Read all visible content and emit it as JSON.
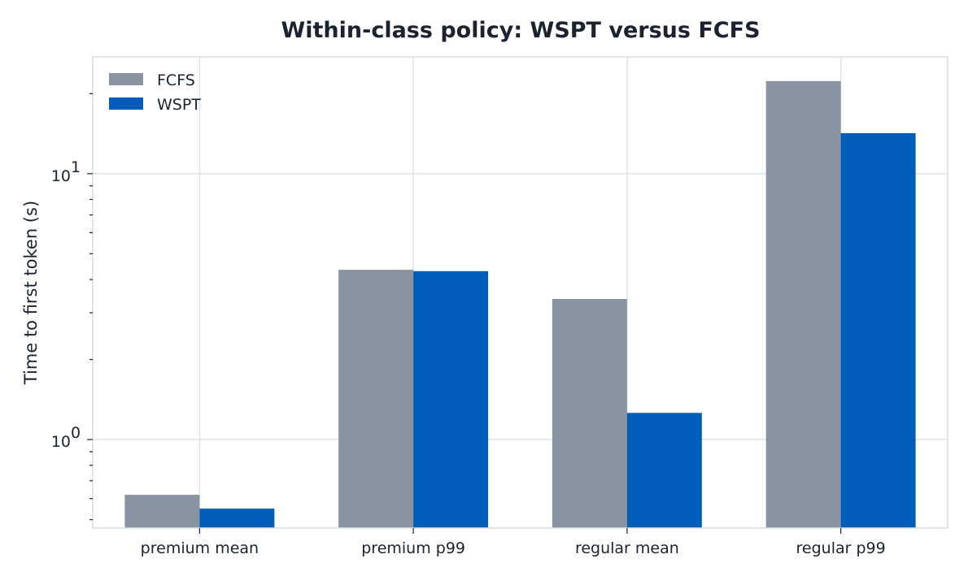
{
  "chart_data": {
    "type": "bar",
    "title": "Within-class policy: WSPT versus FCFS",
    "ylabel": "Time to first token (s)",
    "xlabel": "",
    "yscale": "log",
    "ylim": [
      0.465,
      27.5
    ],
    "grid": true,
    "legend_position": "top-left",
    "categories": [
      "premium mean",
      "premium p99",
      "regular mean",
      "regular p99"
    ],
    "y_ticks": [
      {
        "value": 1,
        "base": "10",
        "exp": "0"
      },
      {
        "value": 10,
        "base": "10",
        "exp": "1"
      }
    ],
    "series": [
      {
        "name": "FCFS",
        "color": "#8a93a1",
        "values": [
          0.62,
          4.35,
          3.38,
          22.3
        ]
      },
      {
        "name": "WSPT",
        "color": "#005eb8",
        "values": [
          0.55,
          4.3,
          1.26,
          14.2
        ]
      }
    ]
  }
}
